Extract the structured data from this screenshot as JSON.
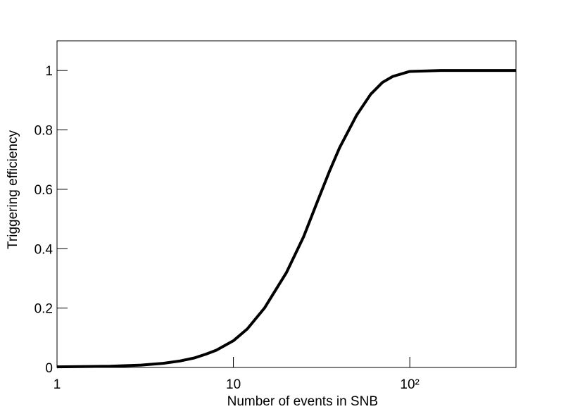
{
  "chart_data": {
    "type": "line",
    "x_label": "Number of events in SNB",
    "y_label": "Triggering efficiency",
    "xscale": "log",
    "x": [
      1,
      2,
      3,
      4,
      5,
      6,
      7,
      8,
      10,
      12,
      15,
      20,
      25,
      30,
      35,
      40,
      50,
      60,
      70,
      80,
      100,
      150,
      200,
      300,
      400
    ],
    "series": [
      {
        "color": "#000000",
        "values": [
          0.002,
          0.004,
          0.008,
          0.014,
          0.022,
          0.032,
          0.045,
          0.058,
          0.09,
          0.13,
          0.2,
          0.32,
          0.44,
          0.56,
          0.66,
          0.74,
          0.85,
          0.92,
          0.96,
          0.98,
          0.997,
          1,
          1,
          1,
          1
        ]
      }
    ],
    "xlim": [
      1,
      400
    ],
    "ylim": [
      0,
      1.1
    ],
    "xticks": [
      1,
      10,
      {
        "value": 100,
        "label": "10²"
      }
    ],
    "yticks": [
      0,
      0.2,
      0.4,
      0.6,
      0.8,
      1
    ],
    "grid": false
  }
}
